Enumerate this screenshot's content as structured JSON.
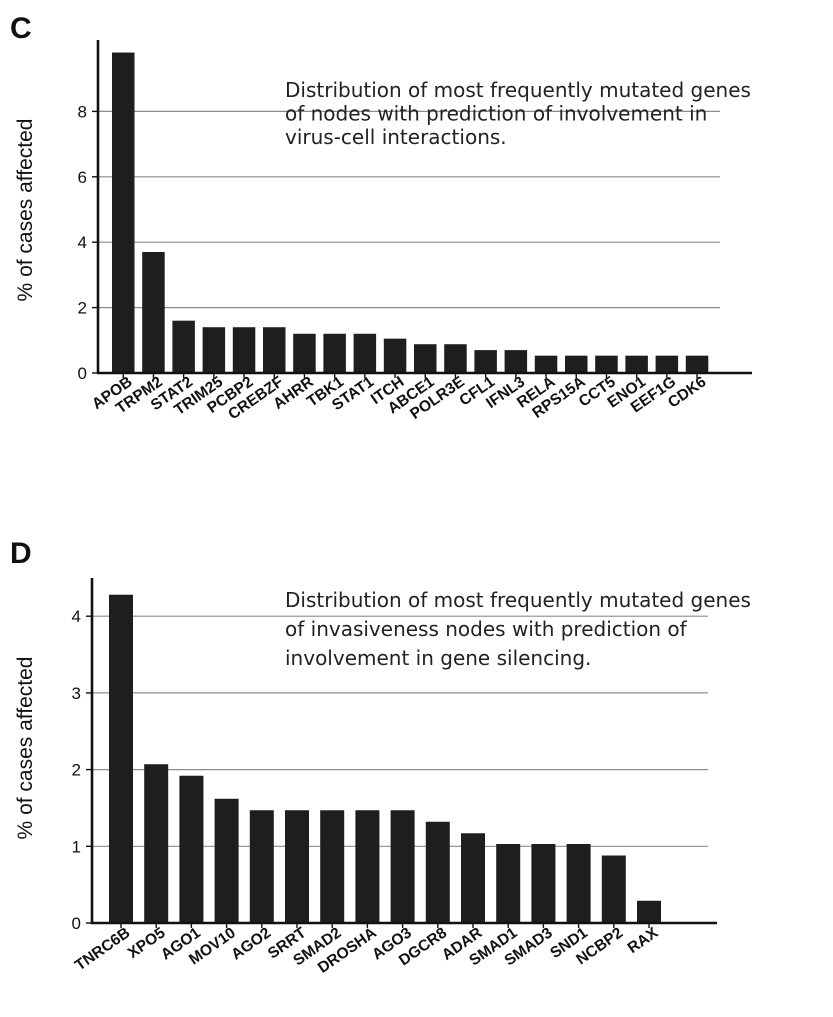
{
  "chart_data": [
    {
      "panel": "C",
      "type": "bar",
      "ylabel": "% of cases affected",
      "ylim": [
        0,
        10
      ],
      "yticks": [
        0,
        2,
        4,
        6,
        8
      ],
      "grid": true,
      "annotation": [
        "Distribution of most frequently mutated genes",
        "of nodes with prediction of involvement in",
        "virus-cell interactions."
      ],
      "categories": [
        "APOB",
        "TRPM2",
        "STAT2",
        "TRIM25",
        "PCBP2",
        "CREBZF",
        "AHRR",
        "TBK1",
        "STAT1",
        "ITCH",
        "ABCE1",
        "POLR3E",
        "CFL1",
        "IFNL3",
        "RELA",
        "RPS15A",
        "CCT5",
        "ENO1",
        "EEF1G",
        "CDK6"
      ],
      "values": [
        9.8,
        3.7,
        1.6,
        1.4,
        1.4,
        1.4,
        1.2,
        1.2,
        1.2,
        1.05,
        0.88,
        0.88,
        0.7,
        0.7,
        0.53,
        0.53,
        0.53,
        0.53,
        0.53,
        0.53
      ]
    },
    {
      "panel": "D",
      "type": "bar",
      "ylabel": "% of cases affected",
      "ylim": [
        0,
        4.5
      ],
      "yticks": [
        0,
        1,
        2,
        3,
        4
      ],
      "grid": true,
      "annotation": [
        "Distribution of most frequently mutated genes",
        "of invasiveness nodes with prediction of",
        "involvement in gene silencing."
      ],
      "categories": [
        "TNRC6B",
        "XPO5",
        "AGO1",
        "MOV10",
        "AGO2",
        "SRRT",
        "SMAD2",
        "DROSHA",
        "AGO3",
        "DGCR8",
        "ADAR",
        "SMAD1",
        "SMAD3",
        "SND1",
        "NCBP2",
        "RAX"
      ],
      "values": [
        4.28,
        2.07,
        1.92,
        1.62,
        1.47,
        1.47,
        1.47,
        1.47,
        1.47,
        1.32,
        1.17,
        1.03,
        1.03,
        1.03,
        0.88,
        0.29
      ]
    }
  ]
}
